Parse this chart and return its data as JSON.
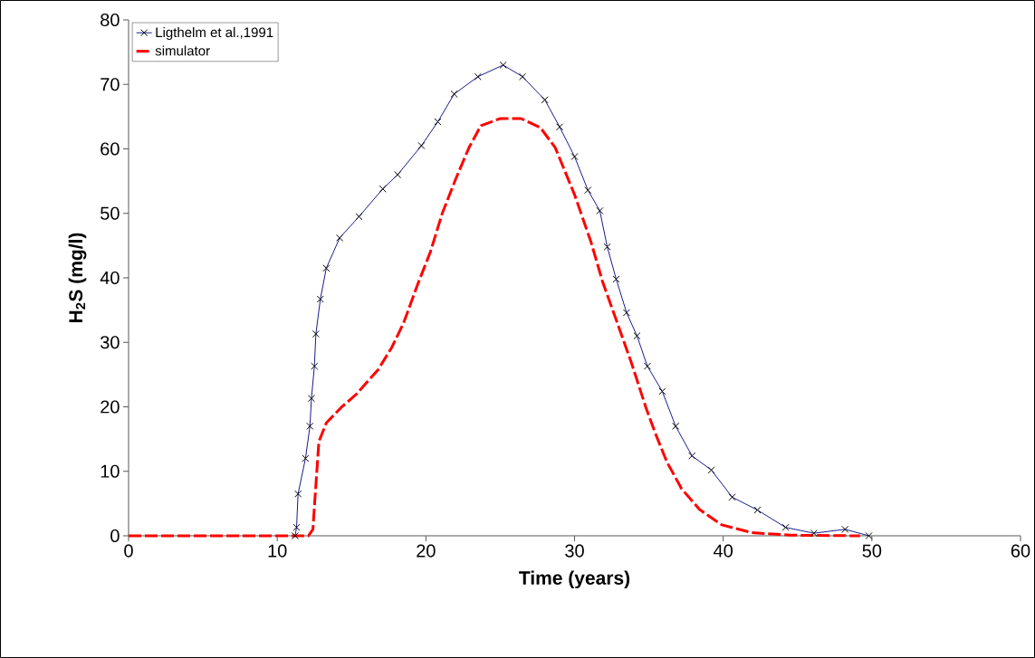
{
  "chart_data": {
    "type": "line",
    "xlabel": "Time (years)",
    "ylabel": "**H$_{2}$S (mg/l)**",
    "xlim": [
      0,
      60
    ],
    "ylim": [
      0,
      80
    ],
    "xticks": [
      0,
      10,
      20,
      30,
      40,
      50,
      60
    ],
    "yticks": [
      0,
      10,
      20,
      30,
      40,
      50,
      60,
      70,
      80
    ],
    "grid": false,
    "legend": "top left",
    "series": [
      {
        "name": "Ligthelm et al.,1991",
        "color": "#000080",
        "marker": "cross",
        "line_style": "solid",
        "x": [
          11.2,
          11.3,
          11.4,
          11.9,
          12.2,
          12.3,
          12.5,
          12.6,
          12.9,
          13.3,
          14.2,
          15.5,
          17.1,
          18.1,
          19.7,
          20.8,
          21.9,
          23.5,
          25.2,
          26.5,
          28.0,
          29.0,
          30.0,
          30.9,
          31.7,
          32.2,
          32.8,
          33.5,
          34.2,
          34.9,
          35.9,
          36.8,
          37.9,
          39.2,
          40.6,
          42.3,
          44.2,
          46.1,
          48.2,
          49.8
        ],
        "values": [
          0,
          1.3,
          6.5,
          12,
          17,
          21.3,
          26.3,
          31.3,
          36.7,
          41.5,
          46.2,
          49.5,
          53.8,
          56,
          60.5,
          64.2,
          68.5,
          71.2,
          73,
          71.2,
          67.6,
          63.4,
          58.8,
          53.6,
          50.4,
          44.8,
          39.8,
          34.6,
          31,
          26.3,
          22.4,
          17,
          12.4,
          10.2,
          6,
          4,
          1.3,
          0.4,
          1,
          0
        ]
      },
      {
        "name": "simulator",
        "color": "#ff0000",
        "marker": "none",
        "line_style": "dashed",
        "x": [
          0,
          12.1,
          12.4,
          12.5,
          12.8,
          13.3,
          14.3,
          15.3,
          16.8,
          17.7,
          18.5,
          19.4,
          20.3,
          21.1,
          22.0,
          22.9,
          23.7,
          25.0,
          26.4,
          27.7,
          28.7,
          30.0,
          31.1,
          31.9,
          32.8,
          33.8,
          34.8,
          35.4,
          36.2,
          37.2,
          38.4,
          39.9,
          41.9,
          44.5,
          49.2
        ],
        "values": [
          0,
          0,
          1,
          4.5,
          14.6,
          17.5,
          19.9,
          21.9,
          25.8,
          29.2,
          33,
          38.7,
          44,
          50,
          55.3,
          60.2,
          63.6,
          64.7,
          64.7,
          63.3,
          60.2,
          52.9,
          45.6,
          39.3,
          33.5,
          27,
          19.9,
          16.1,
          11.5,
          7.3,
          4.1,
          1.7,
          0.5,
          0.1,
          0
        ]
      }
    ]
  }
}
